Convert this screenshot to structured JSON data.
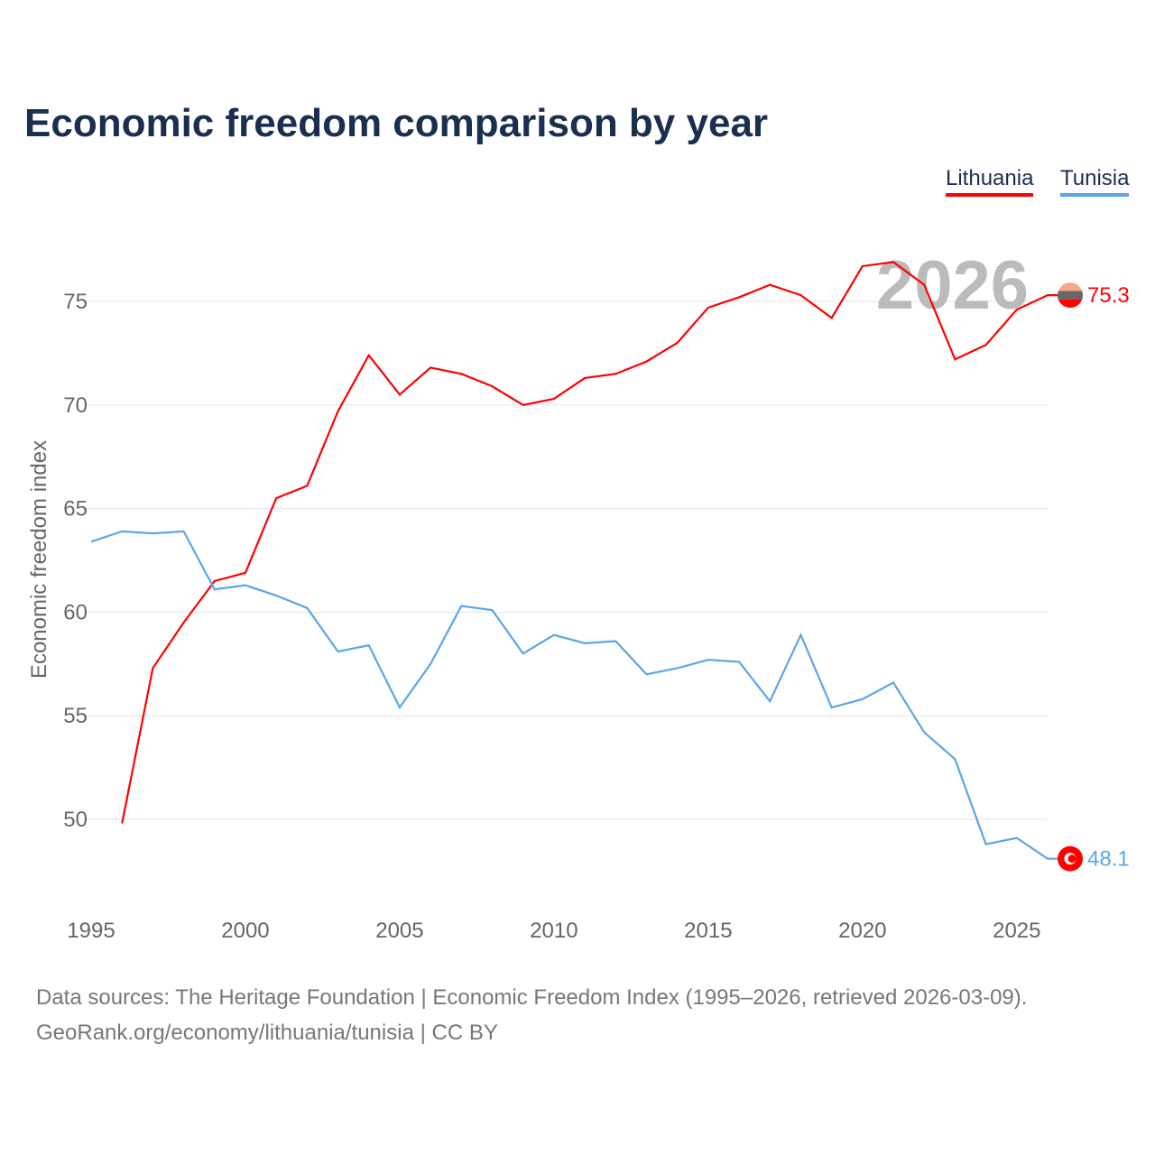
{
  "chart_data": {
    "type": "line",
    "title": "Economic freedom comparison by year",
    "xlabel": "",
    "ylabel": "Economic freedom index",
    "xlim": [
      1995,
      2026
    ],
    "ylim": [
      45.5,
      78
    ],
    "grid": true,
    "legend_position": "top-right",
    "year_watermark": "2026",
    "x_ticks": [
      1995,
      2000,
      2005,
      2010,
      2015,
      2020,
      2025
    ],
    "y_ticks": [
      50,
      55,
      60,
      65,
      70,
      75
    ],
    "series": [
      {
        "name": "Lithuania",
        "color": "#ff0000",
        "end_label": "75.3",
        "x": [
          1996,
          1997,
          1998,
          1999,
          2000,
          2001,
          2002,
          2003,
          2004,
          2005,
          2006,
          2007,
          2008,
          2009,
          2010,
          2011,
          2012,
          2013,
          2014,
          2015,
          2016,
          2017,
          2018,
          2019,
          2020,
          2021,
          2022,
          2023,
          2024,
          2025,
          2026
        ],
        "values": [
          49.8,
          57.3,
          59.5,
          61.5,
          61.9,
          65.5,
          66.1,
          69.7,
          72.4,
          70.5,
          71.8,
          71.5,
          70.9,
          70.0,
          70.3,
          71.3,
          71.5,
          72.1,
          73.0,
          74.7,
          75.2,
          75.8,
          75.3,
          74.2,
          76.7,
          76.9,
          75.8,
          72.2,
          72.9,
          74.6,
          75.3
        ]
      },
      {
        "name": "Tunisia",
        "color": "#5aa5ea",
        "end_label": "48.1",
        "x": [
          1995,
          1996,
          1997,
          1998,
          1999,
          2000,
          2001,
          2002,
          2003,
          2004,
          2005,
          2006,
          2007,
          2008,
          2009,
          2010,
          2011,
          2012,
          2013,
          2014,
          2015,
          2016,
          2017,
          2018,
          2019,
          2020,
          2021,
          2022,
          2023,
          2024,
          2025,
          2026
        ],
        "values": [
          63.4,
          63.9,
          63.8,
          63.9,
          61.1,
          61.3,
          60.8,
          60.2,
          58.1,
          58.4,
          55.4,
          57.5,
          60.3,
          60.1,
          58.0,
          58.9,
          58.5,
          58.6,
          57.0,
          57.3,
          57.7,
          57.6,
          55.7,
          58.9,
          55.4,
          55.8,
          56.6,
          54.2,
          52.9,
          48.8,
          49.1,
          48.1
        ]
      }
    ]
  },
  "footer": {
    "line1": "Data sources: The Heritage Foundation | Economic Freedom Index (1995–2026, retrieved 2026-03-09).",
    "line2": "GeoRank.org/economy/lithuania/tunisia | CC BY"
  }
}
